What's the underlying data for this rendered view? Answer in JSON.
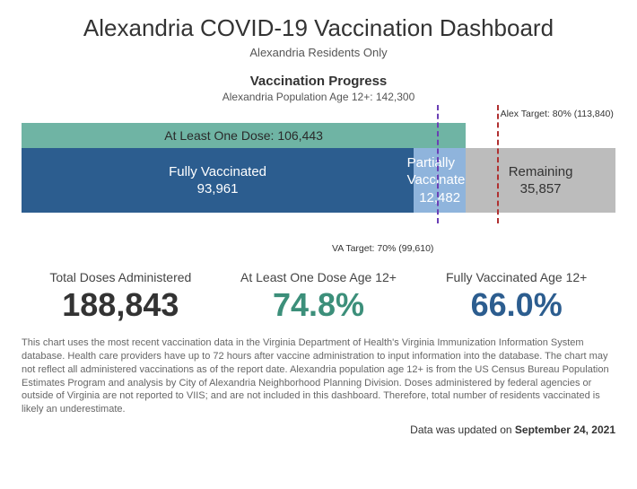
{
  "header": {
    "title": "Alexandria COVID-19 Vaccination Dashboard",
    "subtitle": "Alexandria Residents Only"
  },
  "section": {
    "title": "Vaccination Progress",
    "population_label": "Alexandria Population Age 12+: 142,300"
  },
  "chart": {
    "type": "stacked-bar",
    "total_population": 142300,
    "background_color": "#ffffff",
    "top_bar": {
      "label": "At Least One Dose: 106,443",
      "value": 106443,
      "color": "#6fb4a4",
      "text_color": "#2a2a2a"
    },
    "segments": [
      {
        "key": "fully",
        "label": "Fully Vaccinated",
        "value_text": "93,961",
        "value": 93961,
        "color": "#2c5d8f",
        "text_color": "#ffffff"
      },
      {
        "key": "partial",
        "label": "Partially Vaccinated",
        "value_text": "12,482",
        "value": 12482,
        "color": "#8fb4dc",
        "text_color": "#ffffff"
      },
      {
        "key": "remain",
        "label": "Remaining",
        "value_text": "35,857",
        "value": 35857,
        "color": "#bcbcbc",
        "text_color": "#333333"
      }
    ],
    "targets": {
      "va": {
        "label": "VA Target: 70% (99,610)",
        "fraction": 0.7,
        "color": "#6a3fb5",
        "position": "bottom",
        "align": "right"
      },
      "alex": {
        "label": "Alex Target: 80% (113,840)",
        "fraction": 0.8,
        "color": "#b03030",
        "position": "top",
        "align": "left"
      }
    },
    "label_fontsize": 14
  },
  "stats": {
    "doses": {
      "label": "Total Doses Administered",
      "value": "188,843",
      "color": "#333333"
    },
    "onedose": {
      "label": "At Least One Dose Age 12+",
      "value": "74.8%",
      "color": "#3c8f7a"
    },
    "fully": {
      "label": "Fully Vaccinated Age 12+",
      "value": "66.0%",
      "color": "#2c5d8f"
    }
  },
  "footnote": "This chart uses the most recent vaccination data in the Virginia Department of Health's Virginia Immunization Information System database. Health care providers have up to 72 hours after vaccine administration to input information into the database. The chart may not reflect all administered vaccinations as of the report date. Alexandria population age 12+ is from the US Census Bureau Population Estimates Program and analysis by City of Alexandria Neighborhood Planning Division. Doses administered by federal agencies or outside of Virginia are not reported to VIIS; and are not included in this dashboard. Therefore, total number of residents vaccinated is likely an underestimate.",
  "updated": {
    "prefix": "Data was updated on ",
    "date": "September 24, 2021"
  }
}
